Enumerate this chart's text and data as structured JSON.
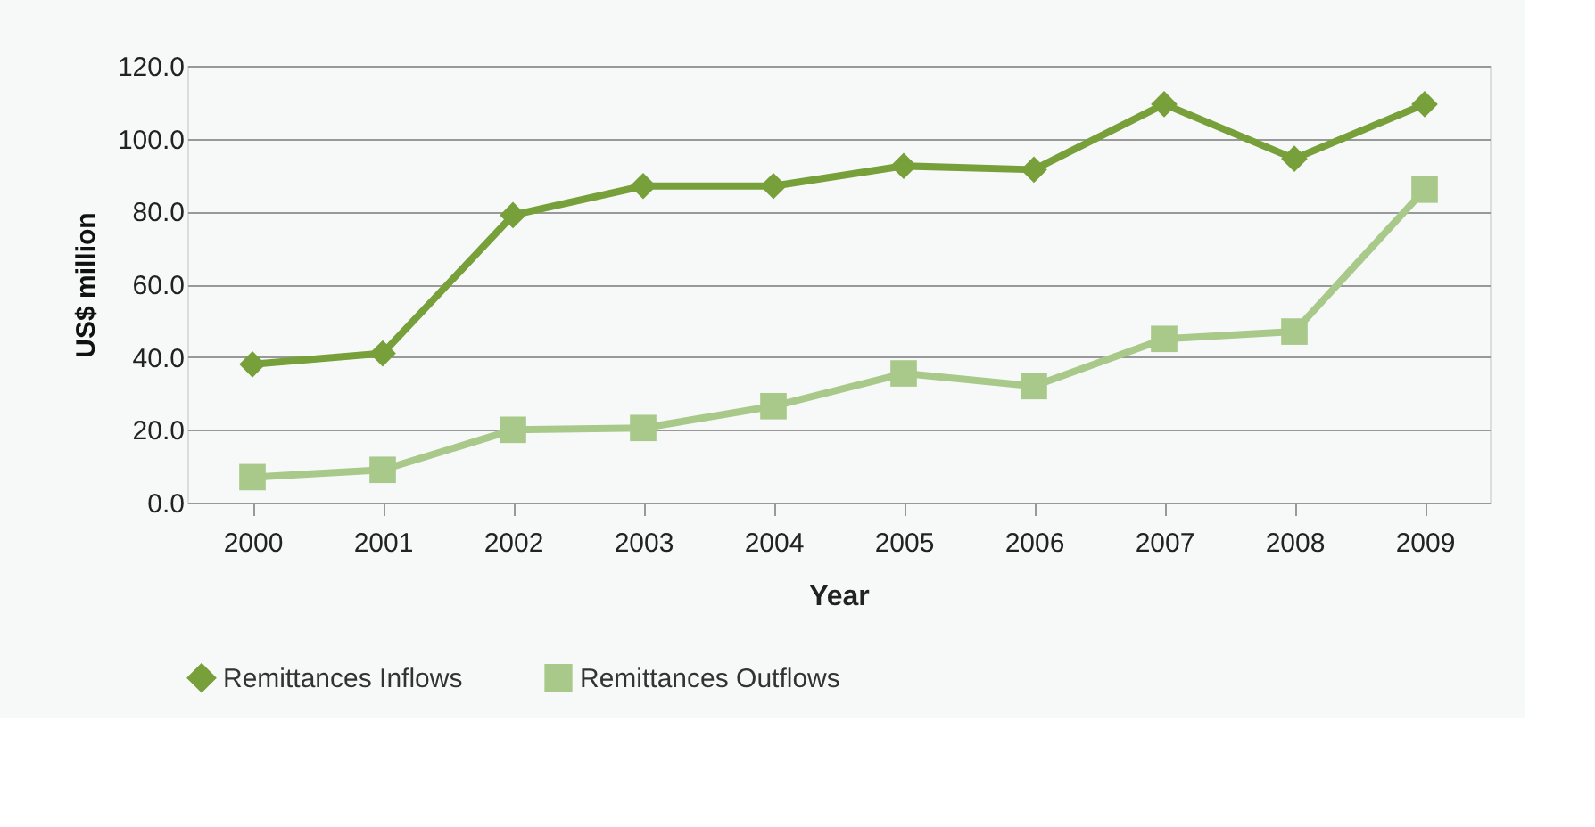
{
  "chart_data": {
    "type": "line",
    "xlabel": "Year",
    "ylabel": "US$ million",
    "categories": [
      "2000",
      "2001",
      "2002",
      "2003",
      "2004",
      "2005",
      "2006",
      "2007",
      "2008",
      "2009"
    ],
    "series": [
      {
        "name": "Remittances Inflows",
        "color": "#77a03a",
        "marker": "diamond",
        "values": [
          38.0,
          41.0,
          79.0,
          87.0,
          87.0,
          92.5,
          91.5,
          109.5,
          94.5,
          109.5
        ]
      },
      {
        "name": "Remittances Outflows",
        "color": "#a9c98a",
        "marker": "square",
        "values": [
          7.0,
          9.0,
          20.0,
          20.5,
          26.5,
          35.5,
          32.0,
          45.0,
          47.0,
          86.0
        ]
      }
    ],
    "ylim": [
      0,
      120
    ],
    "yticks": [
      {
        "value": 0,
        "label": "0.0"
      },
      {
        "value": 20,
        "label": "20.0"
      },
      {
        "value": 40,
        "label": "40.0"
      },
      {
        "value": 60,
        "label": "60.0"
      },
      {
        "value": 80,
        "label": "80.0"
      },
      {
        "value": 100,
        "label": "100.0"
      },
      {
        "value": 120,
        "label": "120.0"
      }
    ],
    "grid": "y",
    "legend": "bottom"
  }
}
